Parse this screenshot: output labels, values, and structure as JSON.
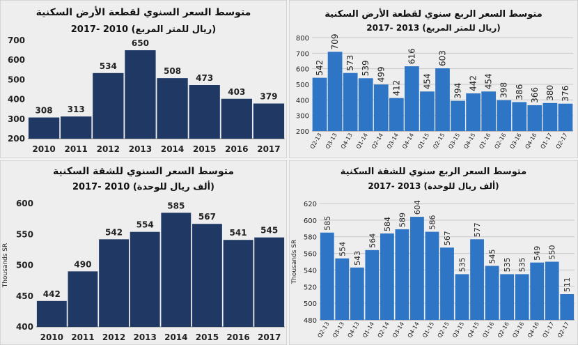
{
  "colors": {
    "panel_bg": "#eeeeee",
    "dark_bar": "#1f3864",
    "light_bar": "#2e75c6",
    "title_text": "#111111",
    "grid": "#c8c8c8",
    "frame": "#bfbfbf"
  },
  "chart_data": [
    {
      "id": "land-annual",
      "type": "bar",
      "title": "متوسط السعر السنوي لقطعة الأرض السكنية",
      "subtitle": "(ريال للمتر المربع) 2010 -2017",
      "categories": [
        "2010",
        "2011",
        "2012",
        "2013",
        "2014",
        "2015",
        "2016",
        "2017"
      ],
      "values": [
        308,
        313,
        534,
        650,
        508,
        473,
        403,
        379
      ],
      "yticks": [
        "200",
        "300",
        "400",
        "500",
        "600",
        "700"
      ],
      "ylim": [
        200,
        700
      ],
      "ylabel": "",
      "grid": false
    },
    {
      "id": "land-quarterly",
      "type": "bar",
      "title": "متوسط السعر الربع سنوي لقطعة الأرض السكنية",
      "subtitle": "(ريال للمتر المربع) 2013 -2017",
      "categories": [
        "Q2-13",
        "Q3-13",
        "Q4-13",
        "Q1-14",
        "Q2-14",
        "Q3-14",
        "Q4-14",
        "Q1-15",
        "Q2-15",
        "Q3-15",
        "Q4-15",
        "Q1-16",
        "Q2-16",
        "Q3-16",
        "Q4-16",
        "Q1-17",
        "Q2-17"
      ],
      "values": [
        542,
        709,
        573,
        539,
        499,
        412,
        616,
        454,
        603,
        394,
        442,
        454,
        398,
        386,
        366,
        380,
        376
      ],
      "yticks": [
        "200",
        "300",
        "400",
        "500",
        "600",
        "700",
        "800"
      ],
      "ylim": [
        200,
        800
      ],
      "ylabel": "",
      "grid": true
    },
    {
      "id": "apt-annual",
      "type": "bar",
      "title": "متوسط السعر السنوي للشقة السكنية",
      "subtitle": "(ألف ريال للوحدة) 2010 -2017",
      "categories": [
        "2010",
        "2011",
        "2012",
        "2013",
        "2014",
        "2015",
        "2016",
        "2017"
      ],
      "values": [
        442,
        490,
        542,
        554,
        585,
        567,
        541,
        545
      ],
      "yticks": [
        "400",
        "450",
        "500",
        "550",
        "600"
      ],
      "ylim": [
        400,
        600
      ],
      "ylabel": "Thousands SR",
      "grid": false
    },
    {
      "id": "apt-quarterly",
      "type": "bar",
      "title": "متوسط السعر الربع سنوي للشقة السكنية",
      "subtitle": "(ألف ريال للوحدة) 2013 -2017",
      "categories": [
        "Q2-13",
        "Q3-13",
        "Q4-13",
        "Q1-14",
        "Q2-14",
        "Q3-14",
        "Q4-14",
        "Q1-15",
        "Q2-15",
        "Q3-15",
        "Q4-15",
        "Q1-16",
        "Q2-16",
        "Q3-16",
        "Q4-16",
        "Q1-17",
        "Q2-17"
      ],
      "values": [
        585,
        554,
        543,
        564,
        584,
        589,
        604,
        586,
        567,
        535,
        577,
        545,
        535,
        535,
        549,
        550,
        511
      ],
      "yticks": [
        "480",
        "500",
        "520",
        "540",
        "560",
        "580",
        "600",
        "620"
      ],
      "ylim": [
        480,
        620
      ],
      "ylabel": "Thousands SR",
      "grid": true
    }
  ]
}
